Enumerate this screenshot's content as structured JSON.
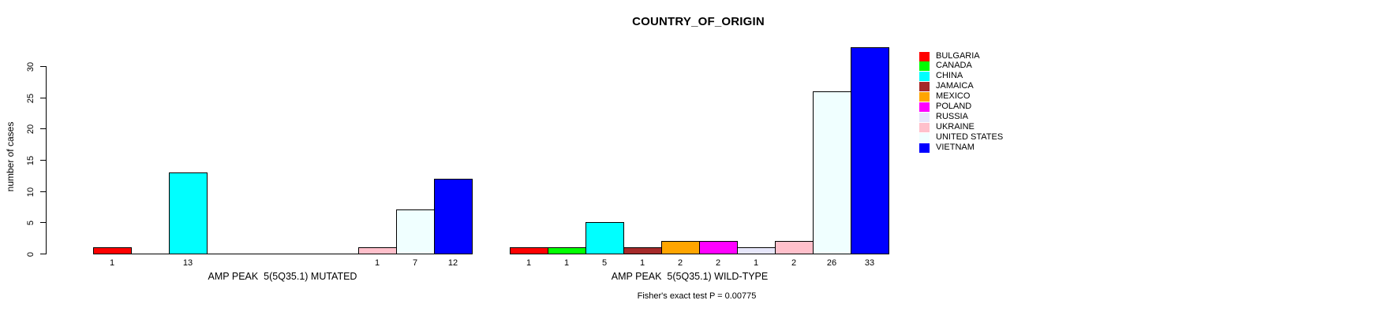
{
  "chart_data": {
    "type": "bar",
    "title": "COUNTRY_OF_ORIGIN",
    "ylabel": "number of cases",
    "yticks": [
      0,
      5,
      10,
      15,
      20,
      25,
      30
    ],
    "ylim": [
      0,
      33
    ],
    "grid": false,
    "legend_position": "right-top-outside",
    "categories": [
      "BULGARIA",
      "CANADA",
      "CHINA",
      "JAMAICA",
      "MEXICO",
      "POLAND",
      "RUSSIA",
      "UKRAINE",
      "UNITED STATES",
      "VIETNAM"
    ],
    "colors": [
      "#FF0000",
      "#00FF00",
      "#00FFFF",
      "#A52A2A",
      "#FFA500",
      "#FF00FF",
      "#E6E6FA",
      "#FFC0CB",
      "#F0FFFF",
      "#0000FF"
    ],
    "groups": [
      {
        "label": "AMP PEAK  5(5Q35.1) MUTATED",
        "values": [
          1,
          0,
          13,
          0,
          0,
          0,
          0,
          1,
          7,
          12
        ]
      },
      {
        "label": "AMP PEAK  5(5Q35.1) WILD-TYPE",
        "values": [
          1,
          1,
          5,
          1,
          2,
          2,
          1,
          2,
          26,
          33
        ]
      }
    ],
    "bar_value_labels_shown_for_nonzero_only": true,
    "annotation": "Fisher's exact test P = 0.00775"
  }
}
